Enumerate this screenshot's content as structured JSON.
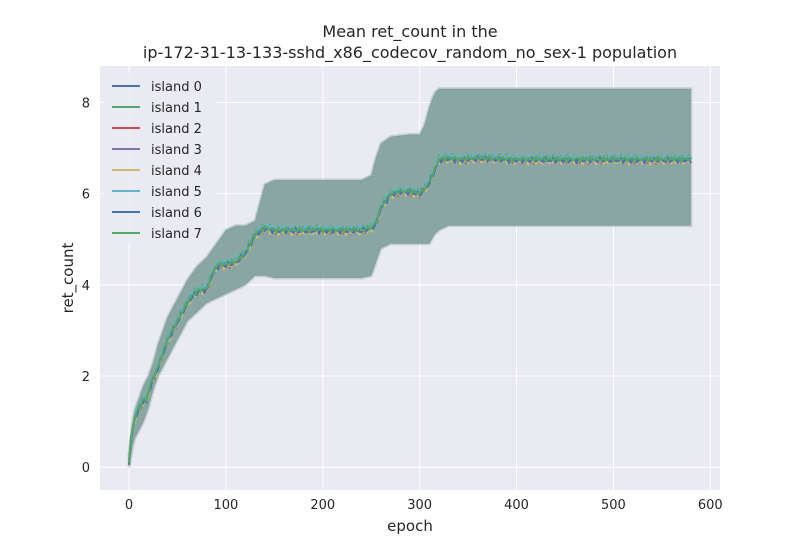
{
  "chart_data": {
    "type": "line",
    "title_line1": "Mean ret_count in the",
    "title_line2": "ip-172-31-13-133-sshd_x86_codecov_random_no_sex-1 population",
    "xlabel": "epoch",
    "ylabel": "ret_count",
    "xlim": [
      -30,
      610
    ],
    "ylim": [
      -0.5,
      8.8
    ],
    "xticks": [
      0,
      100,
      200,
      300,
      400,
      500,
      600
    ],
    "yticks": [
      0,
      2,
      4,
      6,
      8
    ],
    "grid": true,
    "legend_position": "upper-left",
    "background": "#eaeaf2",
    "band_color": "#7f9f99",
    "mean_curve": {
      "x": [
        0,
        2,
        5,
        8,
        12,
        15,
        18,
        22,
        25,
        30,
        35,
        40,
        45,
        50,
        55,
        60,
        65,
        70,
        75,
        80,
        85,
        90,
        95,
        100,
        110,
        120,
        130,
        140,
        150,
        160,
        170,
        180,
        190,
        200,
        210,
        220,
        230,
        240,
        250,
        255,
        260,
        265,
        270,
        280,
        290,
        300,
        305,
        310,
        315,
        320,
        330,
        340,
        360,
        400,
        450,
        500,
        550,
        580
      ],
      "y": [
        0.1,
        0.6,
        1.0,
        1.2,
        1.35,
        1.5,
        1.45,
        1.8,
        1.95,
        2.2,
        2.5,
        2.8,
        3.0,
        3.2,
        3.4,
        3.6,
        3.75,
        3.85,
        3.9,
        3.9,
        4.2,
        4.4,
        4.45,
        4.45,
        4.5,
        4.7,
        5.1,
        5.25,
        5.2,
        5.2,
        5.2,
        5.2,
        5.2,
        5.2,
        5.2,
        5.2,
        5.2,
        5.2,
        5.25,
        5.35,
        5.7,
        5.85,
        6.0,
        6.05,
        6.05,
        6.0,
        6.1,
        6.25,
        6.5,
        6.75,
        6.78,
        6.75,
        6.78,
        6.75,
        6.75,
        6.75,
        6.75,
        6.75
      ]
    },
    "band_upper": {
      "x": [
        0,
        5,
        10,
        15,
        20,
        25,
        30,
        40,
        50,
        60,
        70,
        80,
        90,
        100,
        110,
        120,
        130,
        135,
        140,
        150,
        200,
        240,
        250,
        255,
        260,
        270,
        290,
        300,
        305,
        310,
        315,
        320,
        330,
        400,
        500,
        580
      ],
      "y": [
        0.3,
        1.2,
        1.5,
        1.8,
        2.0,
        2.3,
        2.7,
        3.3,
        3.7,
        4.1,
        4.4,
        4.6,
        4.9,
        5.2,
        5.3,
        5.3,
        5.4,
        5.8,
        6.2,
        6.3,
        6.3,
        6.3,
        6.4,
        6.8,
        7.1,
        7.25,
        7.3,
        7.3,
        7.5,
        7.9,
        8.2,
        8.3,
        8.3,
        8.3,
        8.3,
        8.3
      ]
    },
    "band_lower": {
      "x": [
        0,
        5,
        10,
        15,
        20,
        25,
        30,
        40,
        50,
        60,
        70,
        80,
        90,
        100,
        110,
        120,
        130,
        140,
        150,
        200,
        240,
        250,
        255,
        260,
        270,
        290,
        300,
        310,
        315,
        320,
        330,
        400,
        500,
        580
      ],
      "y": [
        0.0,
        0.6,
        0.8,
        1.0,
        1.3,
        1.7,
        2.0,
        2.4,
        2.8,
        3.2,
        3.4,
        3.6,
        3.7,
        3.8,
        3.9,
        4.0,
        4.2,
        4.2,
        4.15,
        4.15,
        4.15,
        4.2,
        4.5,
        4.8,
        4.9,
        4.9,
        4.9,
        4.9,
        5.1,
        5.2,
        5.3,
        5.3,
        5.3,
        5.3
      ]
    },
    "series": [
      {
        "name": "island 0",
        "color": "#4c72b0",
        "offset": 0.0
      },
      {
        "name": "island 1",
        "color": "#55a868",
        "offset": 0.04
      },
      {
        "name": "island 2",
        "color": "#c44e52",
        "offset": -0.03
      },
      {
        "name": "island 3",
        "color": "#8172b2",
        "offset": 0.02
      },
      {
        "name": "island 4",
        "color": "#ccb974",
        "offset": -0.05
      },
      {
        "name": "island 5",
        "color": "#64b5cd",
        "offset": 0.05
      },
      {
        "name": "island 6",
        "color": "#4c72b0",
        "offset": -0.02
      },
      {
        "name": "island 7",
        "color": "#55a868",
        "offset": 0.01
      }
    ]
  }
}
